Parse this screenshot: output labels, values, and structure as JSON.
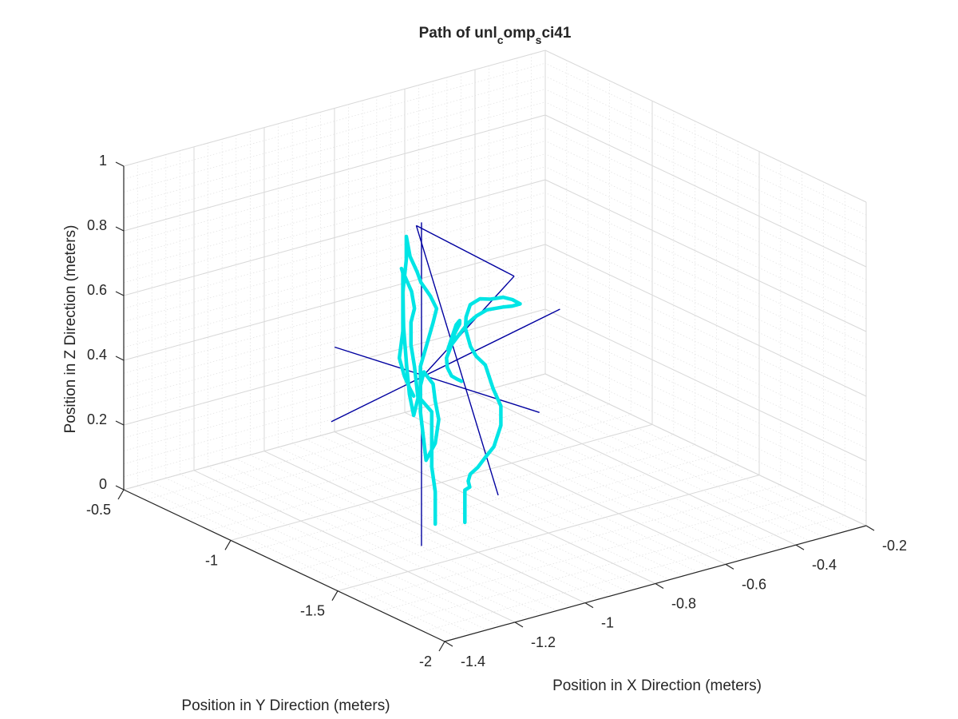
{
  "chart_data": {
    "type": "line",
    "projection": "3d",
    "title": {
      "main": "Path of unl",
      "sub1": "c",
      "mid": "omp",
      "sub2": "s",
      "tail": "ci41"
    },
    "xlabel": "Position in X Direction (meters)",
    "ylabel": "Position in Y Direction (meters)",
    "zlabel": "Position in Z Direction (meters)",
    "xlim": [
      -1.4,
      -0.2
    ],
    "ylim": [
      -2,
      -0.5
    ],
    "zlim": [
      0,
      1
    ],
    "x_ticks": [
      -1.4,
      -1.2,
      -1,
      -0.8,
      -0.6,
      -0.4,
      -0.2
    ],
    "x_tick_labels": [
      "-1.4",
      "-1.2",
      "-1",
      "-0.8",
      "-0.6",
      "-0.4",
      "-0.2"
    ],
    "y_ticks": [
      -2,
      -1.5,
      -1,
      -0.5
    ],
    "y_tick_labels": [
      "-2",
      "-1.5",
      "-1",
      "-0.5"
    ],
    "z_ticks": [
      0,
      0.2,
      0.4,
      0.6,
      0.8,
      1
    ],
    "z_tick_labels": [
      "0",
      "0.2",
      "0.4",
      "0.6",
      "0.8",
      "1"
    ],
    "grid": true,
    "minor_grid": true,
    "box_color": "#262626",
    "grid_color": "#d9d9d9",
    "minor_grid_color": "#e4e4e4",
    "reference_color": "#0000a0",
    "path_color": "#00e5e5",
    "center": [
      -0.93,
      -1.12,
      0.4
    ],
    "reference_lines": [
      {
        "from": [
          -1.26,
          -1.24,
          0.4
        ],
        "to": [
          -0.42,
          -0.93,
          0.4
        ]
      },
      {
        "from": [
          -0.97,
          -0.78,
          0.4
        ],
        "to": [
          -0.85,
          -1.54,
          0.4
        ]
      },
      {
        "from": [
          -0.93,
          -1.12,
          -0.12
        ],
        "to": [
          -0.93,
          -1.12,
          0.88
        ]
      },
      {
        "from": [
          -0.89,
          -1.03,
          0.83
        ],
        "to": [
          -0.87,
          -1.38,
          0.1
        ]
      },
      {
        "from": [
          -0.89,
          -1.03,
          0.83
        ],
        "to": [
          -0.66,
          -1.11,
          0.63
        ]
      },
      {
        "from": [
          -0.66,
          -1.11,
          0.63
        ],
        "to": [
          -0.93,
          -1.12,
          0.4
        ]
      }
    ],
    "series": [
      {
        "x": [
          -0.97,
          -0.97,
          -0.97,
          -0.98,
          -0.98,
          -0.98,
          -0.98,
          -1.0,
          -1.0,
          -0.99,
          -0.97,
          -0.97,
          -0.96,
          -0.97,
          -0.99,
          -1.0,
          -1.0,
          -1.0,
          -0.99,
          -0.97,
          -0.96,
          -0.96,
          -0.95,
          -0.93,
          -0.92,
          -0.9,
          -0.9,
          -0.91,
          -0.92,
          -0.93,
          -0.94,
          -0.94,
          -0.94,
          -0.95,
          -0.96,
          -0.96,
          -0.95,
          -0.94,
          -0.93,
          -0.92,
          -0.91,
          -0.91,
          -0.91,
          -0.92,
          -0.93,
          -0.94,
          -0.94,
          -0.94
        ],
        "y": [
          -1.25,
          -1.25,
          -1.25,
          -1.25,
          -1.25,
          -1.25,
          -1.25,
          -1.23,
          -1.23,
          -1.23,
          -1.24,
          -1.25,
          -1.25,
          -1.25,
          -1.24,
          -1.23,
          -1.23,
          -1.23,
          -1.24,
          -1.24,
          -1.24,
          -1.21,
          -1.15,
          -1.1,
          -1.05,
          -1.0,
          -1.0,
          -1.0,
          -1.02,
          -1.05,
          -1.08,
          -1.1,
          -1.12,
          -1.12,
          -1.12,
          -1.12,
          -1.12,
          -1.09,
          -1.05,
          -1.01,
          -1.0,
          -1.0,
          -1.0,
          -1.0,
          -1.04,
          -1.08,
          -1.1,
          -1.1
        ],
        "z": [
          0.0,
          0.05,
          0.1,
          0.18,
          0.23,
          0.28,
          0.35,
          0.39,
          0.43,
          0.47,
          0.43,
          0.38,
          0.32,
          0.25,
          0.2,
          0.35,
          0.42,
          0.49,
          0.55,
          0.62,
          0.66,
          0.69,
          0.71,
          0.72,
          0.75,
          0.79,
          0.72,
          0.62,
          0.52,
          0.42,
          0.34,
          0.28,
          0.34,
          0.44,
          0.51,
          0.58,
          0.62,
          0.66,
          0.68,
          0.7,
          0.68,
          0.6,
          0.5,
          0.42,
          0.38,
          0.36,
          0.34,
          0.34
        ]
      },
      {
        "x": [
          -0.91,
          -0.91,
          -0.91,
          -0.89,
          -0.87,
          -0.84,
          -0.8,
          -0.76,
          -0.73,
          -0.71,
          -0.71,
          -0.72,
          -0.73,
          -0.75,
          -0.76,
          -0.76,
          -0.75,
          -0.73,
          -0.7,
          -0.66,
          -0.63,
          -0.6,
          -0.58,
          -0.57,
          -0.57,
          -0.58,
          -0.6,
          -0.64,
          -0.67,
          -0.7,
          -0.73,
          -0.76,
          -0.79,
          -0.8,
          -0.8,
          -0.77,
          -0.74,
          -0.73,
          -0.73,
          -0.75,
          -0.77,
          -0.79,
          -0.81,
          -0.82,
          -0.82,
          -0.81,
          -0.81
        ],
        "y": [
          -1.29,
          -1.29,
          -1.29,
          -1.28,
          -1.24,
          -1.2,
          -1.17,
          -1.14,
          -1.13,
          -1.13,
          -1.13,
          -1.11,
          -1.09,
          -1.08,
          -1.07,
          -1.06,
          -1.03,
          -1.0,
          -0.97,
          -0.95,
          -0.95,
          -0.96,
          -0.97,
          -0.99,
          -0.99,
          -0.97,
          -0.96,
          -0.95,
          -0.95,
          -0.96,
          -0.98,
          -1.0,
          -1.02,
          -1.03,
          -1.03,
          -1.0,
          -0.97,
          -0.97,
          -0.97,
          -0.98,
          -1.0,
          -1.02,
          -1.04,
          -1.06,
          -1.08,
          -1.09,
          -1.11
        ],
        "z": [
          0.0,
          0.07,
          0.1,
          0.1,
          0.1,
          0.1,
          0.1,
          0.11,
          0.13,
          0.19,
          0.25,
          0.3,
          0.37,
          0.4,
          0.43,
          0.45,
          0.47,
          0.49,
          0.51,
          0.51,
          0.5,
          0.5,
          0.49,
          0.48,
          0.48,
          0.47,
          0.47,
          0.47,
          0.46,
          0.45,
          0.44,
          0.43,
          0.42,
          0.42,
          0.42,
          0.44,
          0.46,
          0.47,
          0.46,
          0.44,
          0.42,
          0.41,
          0.4,
          0.38,
          0.36,
          0.35,
          0.35
        ]
      }
    ]
  }
}
